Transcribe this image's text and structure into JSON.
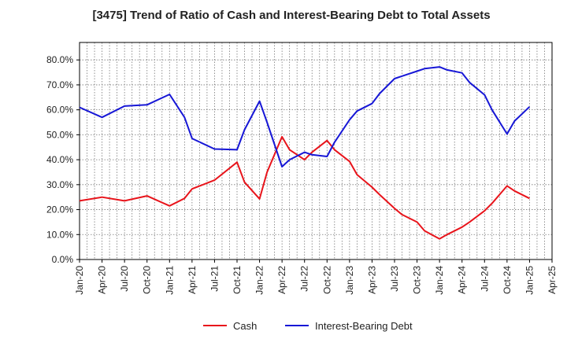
{
  "chart_data": {
    "type": "line",
    "title": "[3475]  Trend of Ratio of Cash and Interest-Bearing Debt to Total Assets",
    "xlabel": "",
    "ylabel": "",
    "y_ticks": [
      "0.0%",
      "10.0%",
      "20.0%",
      "30.0%",
      "40.0%",
      "50.0%",
      "60.0%",
      "70.0%",
      "80.0%"
    ],
    "ylim": [
      0,
      87
    ],
    "x_ticks": [
      "Jan-20",
      "Apr-20",
      "Jul-20",
      "Oct-20",
      "Jan-21",
      "Apr-21",
      "Jul-21",
      "Oct-21",
      "Jan-22",
      "Apr-22",
      "Jul-22",
      "Oct-22",
      "Jan-23",
      "Apr-23",
      "Jul-23",
      "Oct-23",
      "Jan-24",
      "Apr-24",
      "Jul-24",
      "Oct-24",
      "Jan-25",
      "Apr-25"
    ],
    "x": [
      "Jan-20",
      "Feb-20",
      "Mar-20",
      "Apr-20",
      "May-20",
      "Jun-20",
      "Jul-20",
      "Aug-20",
      "Sep-20",
      "Oct-20",
      "Nov-20",
      "Dec-20",
      "Jan-21",
      "Feb-21",
      "Mar-21",
      "Apr-21",
      "May-21",
      "Jun-21",
      "Jul-21",
      "Aug-21",
      "Sep-21",
      "Oct-21",
      "Nov-21",
      "Dec-21",
      "Jan-22",
      "Feb-22",
      "Mar-22",
      "Apr-22",
      "May-22",
      "Jun-22",
      "Jul-22",
      "Aug-22",
      "Sep-22",
      "Oct-22",
      "Nov-22",
      "Dec-22",
      "Jan-23",
      "Feb-23",
      "Mar-23",
      "Apr-23",
      "May-23",
      "Jun-23",
      "Jul-23",
      "Aug-23",
      "Sep-23",
      "Oct-23",
      "Nov-23",
      "Dec-23",
      "Jan-24",
      "Feb-24",
      "Mar-24",
      "Apr-24",
      "May-24",
      "Jun-24",
      "Jul-24",
      "Aug-24",
      "Sep-24",
      "Oct-24",
      "Nov-24",
      "Dec-24",
      "Jan-25"
    ],
    "series": [
      {
        "name": "Cash",
        "color": "#e8141b",
        "values": [
          23.5,
          null,
          null,
          25.0,
          null,
          null,
          23.5,
          null,
          null,
          25.5,
          null,
          null,
          21.5,
          null,
          24.5,
          28.3,
          null,
          null,
          31.8,
          null,
          null,
          39.0,
          31.0,
          null,
          24.3,
          35.0,
          null,
          49.2,
          44.0,
          null,
          40.0,
          43.0,
          null,
          47.7,
          44.0,
          null,
          39.3,
          34.0,
          null,
          29.0,
          26.0,
          null,
          20.5,
          18.0,
          null,
          15.0,
          11.5,
          null,
          8.3,
          10.0,
          null,
          13.0,
          15.0,
          null,
          19.5,
          22.5,
          null,
          29.5,
          27.5,
          null,
          24.5
        ]
      },
      {
        "name": "Interest-Bearing Debt",
        "color": "#1717d6",
        "values": [
          61.0,
          null,
          null,
          57.0,
          null,
          null,
          61.5,
          null,
          null,
          62.0,
          null,
          null,
          66.2,
          null,
          57.0,
          48.5,
          null,
          null,
          44.3,
          null,
          null,
          44.0,
          52.0,
          null,
          63.5,
          55.0,
          null,
          37.2,
          40.0,
          null,
          43.0,
          42.0,
          null,
          41.3,
          47.0,
          null,
          56.0,
          59.5,
          null,
          62.5,
          66.5,
          null,
          72.5,
          73.5,
          null,
          75.5,
          76.5,
          null,
          77.2,
          76.0,
          null,
          74.8,
          71.0,
          null,
          66.0,
          60.0,
          null,
          50.3,
          55.5,
          null,
          61.2
        ]
      }
    ],
    "grid": true,
    "legend": "bottom-center"
  }
}
